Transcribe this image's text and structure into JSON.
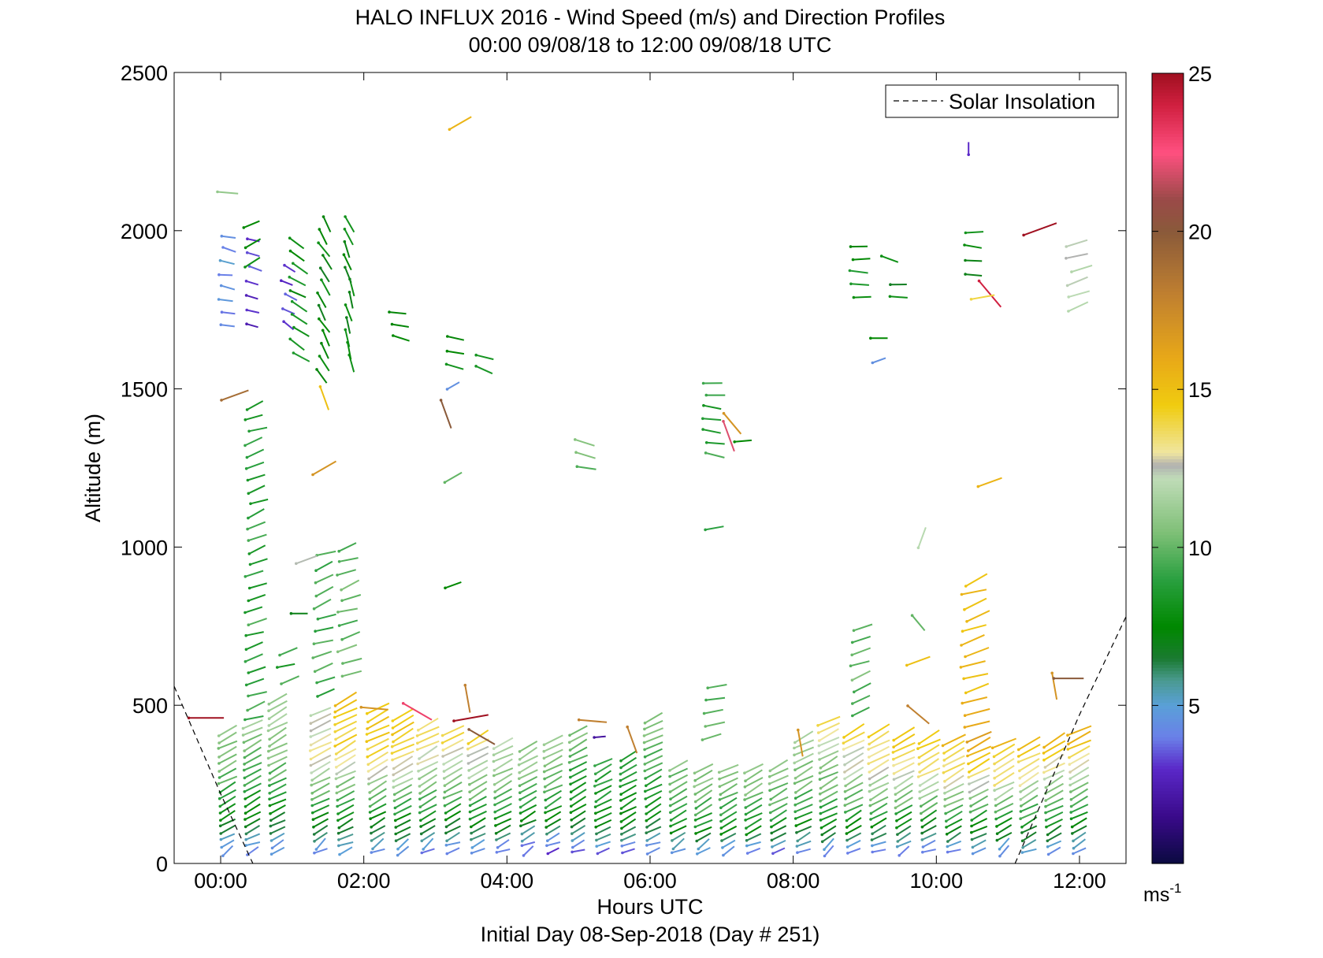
{
  "chart_data": {
    "type": "scatter",
    "title": "HALO INFLUX 2016 - Wind Speed (m/s) and Direction Profiles",
    "subtitle": "00:00 09/08/18 to 12:00 09/08/18  UTC",
    "xlabel": "Hours UTC",
    "xlabel2": "Initial Day 08-Sep-2018 (Day # 251)",
    "ylabel": "Altitude (m)",
    "xlim": [
      -0.65,
      12.65
    ],
    "ylim": [
      0,
      2500
    ],
    "x_ticks": [
      0,
      2,
      4,
      6,
      8,
      10,
      12
    ],
    "x_tick_labels": [
      "00:00",
      "02:00",
      "04:00",
      "06:00",
      "08:00",
      "10:00",
      "12:00"
    ],
    "y_ticks": [
      0,
      500,
      1000,
      1500,
      2000,
      2500
    ],
    "y_tick_labels": [
      "0",
      "500",
      "1000",
      "1500",
      "2000",
      "2500"
    ],
    "grid": false,
    "legend": {
      "position": "top-right",
      "entries": [
        {
          "label": "Solar Insolation",
          "style": "dashed",
          "color": "#000000"
        }
      ]
    },
    "colorbar": {
      "range": [
        0,
        25
      ],
      "ticks": [
        5,
        10,
        15,
        20,
        25
      ],
      "tick_labels": [
        "5",
        "10",
        "15",
        "20",
        "25"
      ],
      "unit": "ms",
      "unit_sup": "-1",
      "stops": [
        {
          "v": 0,
          "c": "#0a0a40"
        },
        {
          "v": 1.5,
          "c": "#3a0a8a"
        },
        {
          "v": 3,
          "c": "#5a28c8"
        },
        {
          "v": 4,
          "c": "#6a80e8"
        },
        {
          "v": 5,
          "c": "#5aa0d8"
        },
        {
          "v": 5.8,
          "c": "#4a9a90"
        },
        {
          "v": 6.5,
          "c": "#1a7a30"
        },
        {
          "v": 7.5,
          "c": "#008800"
        },
        {
          "v": 9,
          "c": "#2aa040"
        },
        {
          "v": 10.5,
          "c": "#80c078"
        },
        {
          "v": 12.2,
          "c": "#c0dcb8"
        },
        {
          "v": 12.6,
          "c": "#b0b0b0"
        },
        {
          "v": 13,
          "c": "#f0e6a0"
        },
        {
          "v": 14.5,
          "c": "#f0cc10"
        },
        {
          "v": 16,
          "c": "#e8a818"
        },
        {
          "v": 18,
          "c": "#c08030"
        },
        {
          "v": 20,
          "c": "#8a5a3a"
        },
        {
          "v": 21,
          "c": "#9a4a48"
        },
        {
          "v": 22.5,
          "c": "#ff5080"
        },
        {
          "v": 24,
          "c": "#d02040"
        },
        {
          "v": 25,
          "c": "#a01020"
        }
      ]
    },
    "solar_insolation": {
      "morning": [
        [
          -0.65,
          560
        ],
        [
          0,
          220
        ],
        [
          0.45,
          0
        ]
      ],
      "evening": [
        [
          11.1,
          0
        ],
        [
          12.0,
          470
        ],
        [
          12.65,
          780
        ]
      ]
    },
    "profile_times": [
      0.1,
      0.45,
      0.8,
      1.4,
      1.75,
      2.2,
      2.55,
      2.9,
      3.25,
      3.6,
      3.95,
      4.3,
      4.65,
      5.0,
      5.35,
      5.7,
      6.05,
      6.4,
      6.75,
      7.1,
      7.45,
      7.8,
      8.15,
      8.5,
      8.85,
      9.2,
      9.55,
      9.9,
      10.25,
      10.6,
      10.95,
      11.3,
      11.65,
      12.0
    ],
    "low_level_profiles": [
      {
        "x": 0.1,
        "top": 420,
        "speed": [
          4.5,
          8,
          10,
          11
        ]
      },
      {
        "x": 0.45,
        "top": 440,
        "speed": [
          4.5,
          8,
          9.5,
          11
        ]
      },
      {
        "x": 0.8,
        "top": 520,
        "speed": [
          4.5,
          8.5,
          11,
          11.5
        ]
      },
      {
        "x": 1.4,
        "top": 480,
        "speed": [
          4.5,
          9,
          13.5,
          12
        ]
      },
      {
        "x": 1.75,
        "top": 520,
        "speed": [
          4.5,
          9,
          14,
          15
        ]
      },
      {
        "x": 2.2,
        "top": 490,
        "speed": [
          4.5,
          9,
          14,
          15
        ]
      },
      {
        "x": 2.55,
        "top": 470,
        "speed": [
          4.5,
          9,
          13.5,
          15
        ]
      },
      {
        "x": 2.9,
        "top": 440,
        "speed": [
          4,
          9,
          12,
          14
        ]
      },
      {
        "x": 3.25,
        "top": 420,
        "speed": [
          4,
          8.5,
          12,
          14
        ]
      },
      {
        "x": 3.6,
        "top": 400,
        "speed": [
          4.5,
          8.5,
          11.5,
          14
        ]
      },
      {
        "x": 3.95,
        "top": 380,
        "speed": [
          3.5,
          8.5,
          11,
          12
        ]
      },
      {
        "x": 4.3,
        "top": 370,
        "speed": [
          3.5,
          8,
          10.5,
          11
        ]
      },
      {
        "x": 4.65,
        "top": 390,
        "speed": [
          3,
          8,
          10,
          11
        ]
      },
      {
        "x": 5.0,
        "top": 420,
        "speed": [
          4,
          8,
          9,
          10.5
        ]
      },
      {
        "x": 5.35,
        "top": 320,
        "speed": [
          4,
          7.5,
          8.5,
          9
        ]
      },
      {
        "x": 5.7,
        "top": 340,
        "speed": [
          4,
          7.5,
          8.5,
          9
        ]
      },
      {
        "x": 6.05,
        "top": 460,
        "speed": [
          4.5,
          8,
          9.5,
          11
        ]
      },
      {
        "x": 6.4,
        "top": 310,
        "speed": [
          4.5,
          8,
          9.5,
          10.5
        ]
      },
      {
        "x": 6.75,
        "top": 300,
        "speed": [
          4.5,
          8.5,
          10,
          11
        ]
      },
      {
        "x": 7.1,
        "top": 300,
        "speed": [
          4.5,
          8.5,
          10,
          11
        ]
      },
      {
        "x": 7.45,
        "top": 300,
        "speed": [
          3.5,
          8.5,
          10,
          11
        ]
      },
      {
        "x": 7.8,
        "top": 310,
        "speed": [
          3.5,
          8.5,
          10,
          11
        ]
      },
      {
        "x": 8.15,
        "top": 400,
        "speed": [
          4.5,
          8.5,
          10.5,
          12
        ]
      },
      {
        "x": 8.5,
        "top": 450,
        "speed": [
          4.5,
          9,
          11,
          13.5
        ]
      },
      {
        "x": 8.85,
        "top": 420,
        "speed": [
          4.5,
          9,
          12,
          14
        ]
      },
      {
        "x": 9.2,
        "top": 420,
        "speed": [
          4,
          9,
          12.5,
          14
        ]
      },
      {
        "x": 9.55,
        "top": 410,
        "speed": [
          4,
          9,
          13,
          14.5
        ]
      },
      {
        "x": 9.9,
        "top": 400,
        "speed": [
          3.5,
          9,
          13,
          14.5
        ]
      },
      {
        "x": 10.25,
        "top": 390,
        "speed": [
          4,
          9,
          13,
          15
        ]
      },
      {
        "x": 10.6,
        "top": 400,
        "speed": [
          4.5,
          9,
          13.5,
          17
        ]
      },
      {
        "x": 10.95,
        "top": 380,
        "speed": [
          4.5,
          9,
          13,
          15
        ]
      },
      {
        "x": 11.3,
        "top": 380,
        "speed": [
          4.5,
          9,
          12.5,
          15
        ]
      },
      {
        "x": 11.65,
        "top": 390,
        "speed": [
          4.5,
          9,
          12,
          15
        ]
      },
      {
        "x": 12.0,
        "top": 420,
        "speed": [
          4.5,
          9,
          12,
          16
        ]
      }
    ],
    "vector_clusters": [
      {
        "x": 0.1,
        "y0": 1700,
        "y1": 2000,
        "dy": 40,
        "speed": 4.5,
        "dir": 100
      },
      {
        "x": 0.45,
        "y0": 1700,
        "y1": 2000,
        "dy": 45,
        "speed": 3,
        "dir": 110
      },
      {
        "x": 0.45,
        "y0": 1900,
        "y1": 2040,
        "dy": 60,
        "speed": 8,
        "dir": 60
      },
      {
        "x": 0.5,
        "y0": 460,
        "y1": 1470,
        "dy": 38,
        "speed": 9,
        "dir": 70
      },
      {
        "x": 0.95,
        "y0": 580,
        "y1": 700,
        "dy": 45,
        "speed": 9,
        "dir": 70
      },
      {
        "x": 0.95,
        "y0": 1700,
        "y1": 1880,
        "dy": 45,
        "speed": 3,
        "dir": 120
      },
      {
        "x": 1.1,
        "y0": 1600,
        "y1": 1960,
        "dy": 40,
        "speed": 8,
        "dir": 120
      },
      {
        "x": 1.45,
        "y0": 540,
        "y1": 1010,
        "dy": 40,
        "speed": 9.5,
        "dir": 70
      },
      {
        "x": 1.45,
        "y0": 1540,
        "y1": 2040,
        "dy": 40,
        "speed": 7.5,
        "dir": 150
      },
      {
        "x": 1.8,
        "y0": 1580,
        "y1": 2040,
        "dy": 40,
        "speed": 7.5,
        "dir": 160
      },
      {
        "x": 1.8,
        "y0": 600,
        "y1": 1000,
        "dy": 40,
        "speed": 10,
        "dir": 70
      },
      {
        "x": 2.5,
        "y0": 1660,
        "y1": 1740,
        "dy": 40,
        "speed": 8,
        "dir": 100
      },
      {
        "x": 3.25,
        "y0": 1570,
        "y1": 1660,
        "dy": 45,
        "speed": 8,
        "dir": 100
      },
      {
        "x": 3.7,
        "y0": 1560,
        "y1": 1620,
        "dy": 40,
        "speed": 8,
        "dir": 110
      },
      {
        "x": 5.1,
        "y0": 1250,
        "y1": 1330,
        "dy": 40,
        "speed": 10,
        "dir": 100
      },
      {
        "x": 6.9,
        "y0": 1290,
        "y1": 1540,
        "dy": 38,
        "speed": 9,
        "dir": 95
      },
      {
        "x": 6.9,
        "y0": 400,
        "y1": 580,
        "dy": 40,
        "speed": 10,
        "dir": 80
      },
      {
        "x": 8.95,
        "y0": 1790,
        "y1": 1960,
        "dy": 40,
        "speed": 8,
        "dir": 90
      },
      {
        "x": 9.5,
        "y0": 1790,
        "y1": 1830,
        "dy": 40,
        "speed": 7.5,
        "dir": 90
      },
      {
        "x": 8.95,
        "y0": 480,
        "y1": 770,
        "dy": 38,
        "speed": 10,
        "dir": 70
      },
      {
        "x": 10.55,
        "y0": 440,
        "y1": 930,
        "dy": 38,
        "speed": 15.5,
        "dir": 70
      },
      {
        "x": 10.55,
        "y0": 1860,
        "y1": 2000,
        "dy": 45,
        "speed": 7.5,
        "dir": 90
      },
      {
        "x": 12.0,
        "y0": 1760,
        "y1": 1960,
        "dy": 40,
        "speed": 12,
        "dir": 75
      }
    ],
    "isolated_vectors": [
      {
        "x": -0.2,
        "y": 460,
        "speed": 25,
        "dir": 90
      },
      {
        "x": 0.2,
        "y": 1480,
        "speed": 19,
        "dir": 70
      },
      {
        "x": 0.1,
        "y": 2120,
        "speed": 11,
        "dir": 95
      },
      {
        "x": 1.1,
        "y": 790,
        "speed": 7,
        "dir": 90
      },
      {
        "x": 1.2,
        "y": 960,
        "speed": 12.5,
        "dir": 70
      },
      {
        "x": 1.45,
        "y": 1250,
        "speed": 17,
        "dir": 60
      },
      {
        "x": 1.45,
        "y": 1470,
        "speed": 15,
        "dir": 160
      },
      {
        "x": 2.15,
        "y": 490,
        "speed": 17,
        "dir": 95
      },
      {
        "x": 2.75,
        "y": 480,
        "speed": 23,
        "dir": 120
      },
      {
        "x": 3.15,
        "y": 1420,
        "speed": 20,
        "dir": 160
      },
      {
        "x": 3.25,
        "y": 1220,
        "speed": 10,
        "dir": 60
      },
      {
        "x": 3.25,
        "y": 880,
        "speed": 7.5,
        "dir": 70
      },
      {
        "x": 3.25,
        "y": 1510,
        "speed": 4.5,
        "dir": 60
      },
      {
        "x": 3.35,
        "y": 2340,
        "speed": 15.5,
        "dir": 60
      },
      {
        "x": 3.5,
        "y": 460,
        "speed": 25,
        "dir": 80
      },
      {
        "x": 3.45,
        "y": 520,
        "speed": 18,
        "dir": 170
      },
      {
        "x": 3.65,
        "y": 400,
        "speed": 20,
        "dir": 120
      },
      {
        "x": 5.3,
        "y": 400,
        "speed": 2,
        "dir": 85
      },
      {
        "x": 5.2,
        "y": 450,
        "speed": 18,
        "dir": 95
      },
      {
        "x": 5.75,
        "y": 390,
        "speed": 18,
        "dir": 160
      },
      {
        "x": 7.1,
        "y": 1350,
        "speed": 22,
        "dir": 160
      },
      {
        "x": 7.3,
        "y": 1335,
        "speed": 7.5,
        "dir": 85
      },
      {
        "x": 7.15,
        "y": 1390,
        "speed": 17,
        "dir": 140
      },
      {
        "x": 6.9,
        "y": 1060,
        "speed": 9,
        "dir": 80
      },
      {
        "x": 8.1,
        "y": 380,
        "speed": 17,
        "dir": 170
      },
      {
        "x": 9.2,
        "y": 1590,
        "speed": 4.5,
        "dir": 70
      },
      {
        "x": 9.2,
        "y": 1660,
        "speed": 7.5,
        "dir": 90
      },
      {
        "x": 9.35,
        "y": 1910,
        "speed": 8,
        "dir": 110
      },
      {
        "x": 9.8,
        "y": 1030,
        "speed": 12,
        "dir": 20
      },
      {
        "x": 9.75,
        "y": 640,
        "speed": 15,
        "dir": 70
      },
      {
        "x": 9.75,
        "y": 760,
        "speed": 10,
        "dir": 140
      },
      {
        "x": 9.75,
        "y": 470,
        "speed": 18,
        "dir": 130
      },
      {
        "x": 10.45,
        "y": 2260,
        "speed": 3,
        "dir": 0
      },
      {
        "x": 10.75,
        "y": 1800,
        "speed": 24,
        "dir": 140
      },
      {
        "x": 10.65,
        "y": 1790,
        "speed": 14,
        "dir": 80
      },
      {
        "x": 10.75,
        "y": 1205,
        "speed": 15.5,
        "dir": 70
      },
      {
        "x": 11.45,
        "y": 2005,
        "speed": 25,
        "dir": 70
      },
      {
        "x": 11.65,
        "y": 560,
        "speed": 17,
        "dir": 170
      },
      {
        "x": 11.85,
        "y": 585,
        "speed": 20,
        "dir": 90
      }
    ]
  }
}
